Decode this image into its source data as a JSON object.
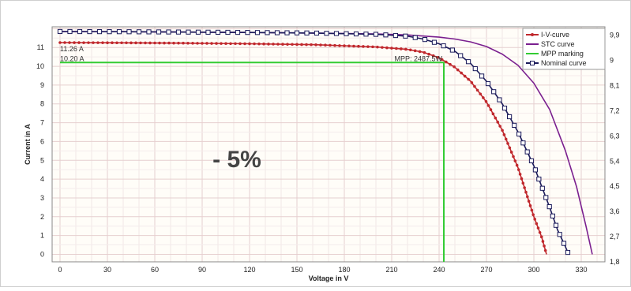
{
  "chart_data": {
    "type": "line",
    "title": "",
    "xlabel": "Voltage in V",
    "ylabel": "Current in A",
    "xlim": [
      -5,
      345
    ],
    "ylim": [
      -0.4,
      12.1
    ],
    "y2lim": [
      1.8,
      10.2
    ],
    "x_ticks": [
      "0",
      "30",
      "60",
      "90",
      "120",
      "150",
      "180",
      "210",
      "240",
      "270",
      "300",
      "330"
    ],
    "y_ticks": [
      "0",
      "1",
      "2",
      "3",
      "4",
      "5",
      "6",
      "7",
      "8",
      "9",
      "10",
      "11"
    ],
    "y2_ticks": [
      "1,8",
      "2,7",
      "3,6",
      "4,5",
      "5,4",
      "6,3",
      "7,2",
      "8,1",
      "9",
      "9,9"
    ],
    "annotations": {
      "isc_label": "11.26 A",
      "impp_label": "10.20 A",
      "mpp_label": "MPP: 2487.5W",
      "big_label": "- 5%"
    },
    "mpp": {
      "x": 243,
      "y": 10.2
    },
    "legend": {
      "position": "top-right",
      "items": [
        {
          "label": "I-V-curve",
          "color": "#c0282d",
          "marker": "dot"
        },
        {
          "label": "STC curve",
          "color": "#7a1f8f",
          "marker": "none"
        },
        {
          "label": "MPP marking",
          "color": "#33cc33",
          "marker": "none"
        },
        {
          "label": "Nominal curve",
          "color": "#1a1a5a",
          "marker": "square"
        }
      ]
    },
    "series": [
      {
        "name": "I-V-curve",
        "color": "#c0282d",
        "x": [
          0,
          40,
          80,
          120,
          160,
          200,
          220,
          230,
          240,
          250,
          260,
          270,
          280,
          290,
          295,
          300,
          305,
          308
        ],
        "y": [
          11.26,
          11.25,
          11.23,
          11.2,
          11.15,
          11.03,
          10.9,
          10.75,
          10.45,
          9.95,
          9.2,
          8.1,
          6.6,
          4.6,
          3.3,
          2.0,
          0.9,
          0.0
        ]
      },
      {
        "name": "STC curve",
        "color": "#7a1f8f",
        "x": [
          0,
          40,
          80,
          120,
          160,
          200,
          220,
          240,
          250,
          260,
          270,
          280,
          290,
          300,
          310,
          320,
          327,
          333,
          337
        ],
        "y": [
          11.85,
          11.84,
          11.82,
          11.8,
          11.77,
          11.72,
          11.67,
          11.55,
          11.45,
          11.3,
          11.05,
          10.65,
          10.05,
          9.1,
          7.7,
          5.5,
          3.6,
          1.5,
          0.0
        ]
      },
      {
        "name": "Nominal curve",
        "color": "#1a1a5a",
        "x": [
          0,
          40,
          80,
          120,
          160,
          200,
          220,
          230,
          240,
          250,
          260,
          270,
          280,
          290,
          300,
          305,
          310,
          315,
          320,
          322
        ],
        "y": [
          11.85,
          11.84,
          11.82,
          11.8,
          11.77,
          11.7,
          11.6,
          11.45,
          11.2,
          10.8,
          10.15,
          9.2,
          8.0,
          6.5,
          4.7,
          3.6,
          2.5,
          1.3,
          0.4,
          0.0
        ]
      },
      {
        "name": "MPP marking",
        "color": "#33cc33",
        "x": [
          0,
          243,
          243
        ],
        "y": [
          10.2,
          10.2,
          -0.4
        ]
      }
    ]
  }
}
